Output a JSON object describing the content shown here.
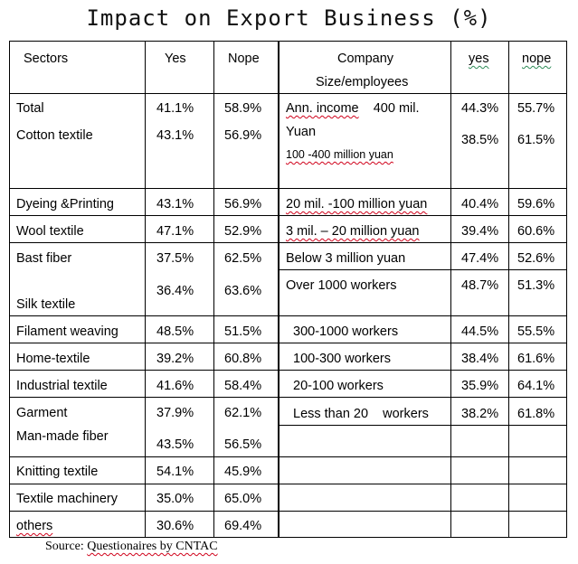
{
  "title": "Impact on Export Business (%)",
  "left_headers": {
    "sectors": "Sectors",
    "yes": "Yes",
    "nope": "Nope"
  },
  "right_headers": {
    "company_line1": "Company",
    "company_line2": "Size/employees",
    "yes": "yes",
    "nope": "nope"
  },
  "sectors": [
    {
      "name": "Total",
      "yes": "41.1%",
      "nope": "58.9%"
    },
    {
      "name": "Cotton textile",
      "yes": "43.1%",
      "nope": "56.9%"
    },
    {
      "name": "Dyeing &Printing",
      "yes": "43.1%",
      "nope": "56.9%"
    },
    {
      "name": "Wool textile",
      "yes": "47.1%",
      "nope": "52.9%"
    },
    {
      "name": "Bast fiber",
      "yes": "37.5%",
      "nope": "62.5%"
    },
    {
      "name": "Silk textile",
      "yes": "36.4%",
      "nope": "63.6%"
    },
    {
      "name": "Filament weaving",
      "yes": "48.5%",
      "nope": "51.5%"
    },
    {
      "name": "Home-textile",
      "yes": "39.2%",
      "nope": "60.8%"
    },
    {
      "name": "Industrial textile",
      "yes": "41.6%",
      "nope": "58.4%"
    },
    {
      "name": "Garment",
      "yes": "37.9%",
      "nope": "62.1%"
    },
    {
      "name": "Man-made fiber",
      "yes": "43.5%",
      "nope": "56.5%"
    },
    {
      "name": "Knitting textile",
      "yes": "54.1%",
      "nope": "45.9%"
    },
    {
      "name": "Textile machinery",
      "yes": "35.0%",
      "nope": "65.0%"
    },
    {
      "name": "others",
      "yes": "30.6%",
      "nope": "69.4%"
    }
  ],
  "company": [
    {
      "label_a": "Ann. income",
      "label_b": "400 mil.",
      "yes": "44.3%",
      "nope": "55.7%"
    },
    {
      "label": "Yuan"
    },
    {
      "label": "100 -400 million yuan",
      "yes": "38.5%",
      "nope": "61.5%"
    },
    {
      "label": "20 mil. -100 million yuan",
      "yes": "40.4%",
      "nope": "59.6%"
    },
    {
      "label": "3 mil. – 20 million yuan",
      "yes": "39.4%",
      "nope": "60.6%"
    },
    {
      "label": "Below 3 million yuan",
      "yes": "47.4%",
      "nope": "52.6%"
    },
    {
      "label": "Over 1000 workers",
      "yes": "48.7%",
      "nope": "51.3%"
    },
    {
      "label": "300-1000 workers",
      "yes": "44.5%",
      "nope": "55.5%"
    },
    {
      "label": "100-300 workers",
      "yes": "38.4%",
      "nope": "61.6%"
    },
    {
      "label": "20-100 workers",
      "yes": "35.9%",
      "nope": "64.1%"
    },
    {
      "label": "Less than 20    workers",
      "yes": "38.2%",
      "nope": "61.8%"
    }
  ],
  "source": {
    "prefix": "Source:",
    "text": "Questionaires by CNTAC"
  }
}
